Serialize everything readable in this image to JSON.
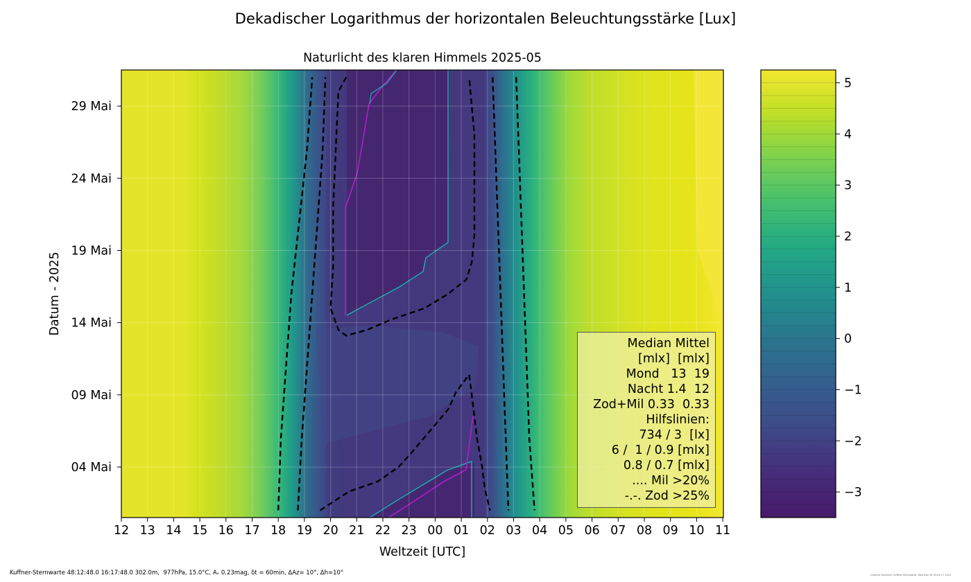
{
  "chart_data": {
    "type": "heatmap",
    "title": "Dekadischer Logarithmus der horizontalen Beleuchtungsstärke [Lux]",
    "subtitle": "Naturlicht des klaren Himmels 2025-05",
    "xlabel": "Weltzeit [UTC]",
    "ylabel": "Datum - 2025",
    "x_ticks": [
      "12",
      "13",
      "14",
      "15",
      "16",
      "17",
      "18",
      "19",
      "20",
      "21",
      "22",
      "23",
      "00",
      "01",
      "02",
      "03",
      "04",
      "05",
      "06",
      "07",
      "08",
      "09",
      "10",
      "11"
    ],
    "y_ticks": [
      "04 Mai",
      "09 Mai",
      "14 Mai",
      "19 Mai",
      "24 Mai",
      "29 Mai"
    ],
    "y_tick_days": [
      4,
      9,
      14,
      19,
      24,
      29
    ],
    "y_range_days": [
      0.5,
      31.5
    ],
    "x_range_hours": [
      12,
      35
    ],
    "colorbar": {
      "ticks": [
        "5",
        "4",
        "3",
        "2",
        "1",
        "0",
        "−1",
        "−2",
        "−3"
      ],
      "tick_values": [
        5,
        4,
        3,
        2,
        1,
        0,
        -1,
        -2,
        -3
      ],
      "range": [
        -3.5,
        5.25
      ],
      "colormap": "viridis"
    },
    "contour_lines": {
      "dashed_hours_per_row_days": [
        1,
        31
      ],
      "dashed": [
        {
          "name": "734 lx",
          "points": [
            [
              18.0,
              1
            ],
            [
              18.1,
              6
            ],
            [
              18.3,
              11
            ],
            [
              18.5,
              16
            ],
            [
              18.8,
              21
            ],
            [
              19.1,
              26
            ],
            [
              19.3,
              31
            ]
          ]
        },
        {
          "name": "3 lx",
          "points": [
            [
              18.75,
              1
            ],
            [
              18.9,
              6
            ],
            [
              19.1,
              11
            ],
            [
              19.3,
              16
            ],
            [
              19.5,
              21
            ],
            [
              19.7,
              26
            ],
            [
              19.8,
              31
            ]
          ]
        },
        {
          "name": "1 mlx evening",
          "points": [
            [
              19.6,
              1
            ],
            [
              20.7,
              2.3
            ],
            [
              21.8,
              3
            ],
            [
              22.6,
              4
            ],
            [
              23.1,
              5
            ],
            [
              23.8,
              6.5
            ],
            [
              24.5,
              8
            ],
            [
              24.8,
              9.2
            ],
            [
              25.3,
              10.4
            ],
            [
              25.4,
              9
            ],
            [
              25.6,
              6
            ],
            [
              25.8,
              4
            ],
            [
              25.9,
              2.5
            ],
            [
              26.1,
              1
            ]
          ]
        },
        {
          "name": "1 mlx night",
          "points": [
            [
              20.6,
              31
            ],
            [
              20.3,
              30
            ],
            [
              20.2,
              26
            ],
            [
              20.1,
              22
            ],
            [
              20.1,
              18
            ],
            [
              20.0,
              15
            ],
            [
              20.3,
              13.5
            ],
            [
              20.6,
              13.1
            ],
            [
              21.4,
              13.5
            ],
            [
              22.3,
              14.2
            ],
            [
              23.6,
              15
            ],
            [
              24.5,
              16
            ],
            [
              25.2,
              17
            ],
            [
              25.4,
              18.2
            ],
            [
              25.5,
              20
            ],
            [
              25.5,
              24
            ],
            [
              25.5,
              27
            ],
            [
              25.4,
              29
            ],
            [
              25.3,
              31
            ]
          ]
        },
        {
          "name": "3 lx morning",
          "points": [
            [
              26.2,
              31
            ],
            [
              26.3,
              26
            ],
            [
              26.4,
              21
            ],
            [
              26.5,
              16
            ],
            [
              26.6,
              11
            ],
            [
              26.7,
              6
            ],
            [
              26.8,
              1
            ]
          ]
        },
        {
          "name": "734 lx morning",
          "points": [
            [
              27.1,
              31
            ],
            [
              27.2,
              26
            ],
            [
              27.3,
              21
            ],
            [
              27.4,
              16
            ],
            [
              27.5,
              11
            ],
            [
              27.6,
              6
            ],
            [
              27.8,
              1
            ]
          ]
        }
      ]
    }
  },
  "legend": {
    "lines": [
      "Median Mittel",
      "[mlx]  [mlx]",
      "Mond   13  19",
      "Nacht 1.4  12",
      "Zod+Mil 0.33  0.33",
      "Hilfslinien:",
      "734 / 3  [lx]",
      "6 /  1 / 0.9 [mlx]",
      "0.8 / 0.7 [mlx]",
      ".... Mil >20%",
      "-.-. Zod >25%"
    ]
  },
  "footer": {
    "left": "Kuffner-Sternwarte 48:12:48.0 16:17:48.0 302.0m,  977hPa, 15.0°C, Aᵥ 0.23mag, δt = 60min, ΔAz= 10°, Δh=10°",
    "right": "Günther Wuchterl, Kuffner-Sternwarte, Wed Sep 18 09:04:17 2024"
  }
}
